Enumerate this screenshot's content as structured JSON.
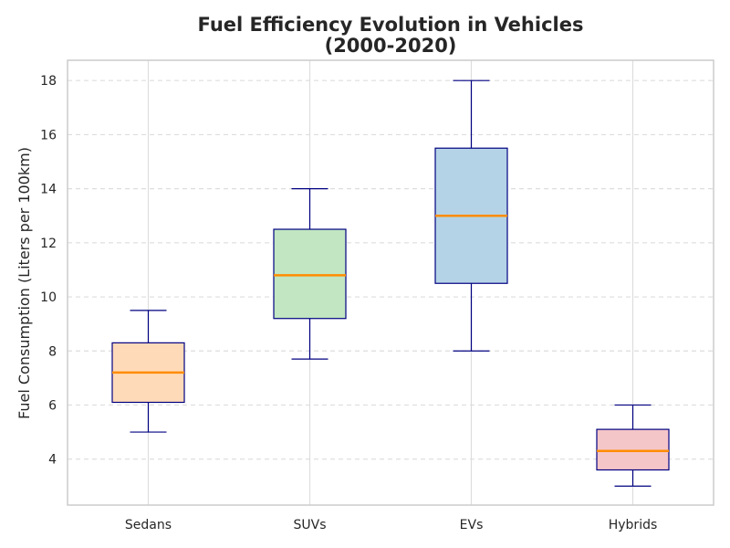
{
  "chart_data": {
    "type": "box",
    "title": [
      "Fuel Efficiency Evolution in Vehicles",
      "(2000-2020)"
    ],
    "xlabel": "",
    "ylabel": "Fuel Consumption (Liters per 100km)",
    "ylim": [
      2.3,
      18.75
    ],
    "yticks": [
      4,
      6,
      8,
      10,
      12,
      14,
      16,
      18
    ],
    "grid": true,
    "categories": [
      "Sedans",
      "SUVs",
      "EVs",
      "Hybrids"
    ],
    "boxes": [
      {
        "category": "Sedans",
        "whisker_low": 5.0,
        "q1": 6.1,
        "median": 7.2,
        "q3": 8.3,
        "whisker_high": 9.5,
        "fill": "#ffdab9"
      },
      {
        "category": "SUVs",
        "whisker_low": 7.7,
        "q1": 9.2,
        "median": 10.8,
        "q3": 12.5,
        "whisker_high": 14.0,
        "fill": "#c1e6c1"
      },
      {
        "category": "EVs",
        "whisker_low": 8.0,
        "q1": 10.5,
        "median": 13.0,
        "q3": 15.5,
        "whisker_high": 18.0,
        "fill": "#b4d3e6"
      },
      {
        "category": "Hybrids",
        "whisker_low": 3.0,
        "q1": 3.6,
        "median": 4.3,
        "q3": 5.1,
        "whisker_high": 6.0,
        "fill": "#f5c6c8"
      }
    ],
    "colors": {
      "box_edge": "#000080",
      "median": "#ff8c00",
      "grid": "#dddddd",
      "frame": "#cccccc"
    }
  }
}
